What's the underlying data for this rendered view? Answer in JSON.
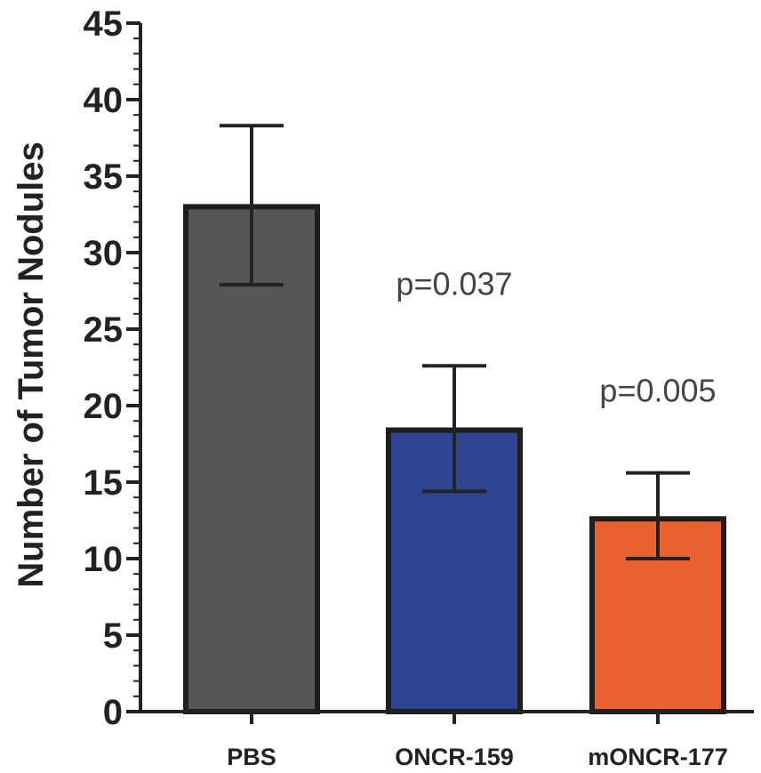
{
  "chart_data": {
    "type": "bar",
    "title": "",
    "xlabel": "",
    "ylabel": "Number of Tumor Nodules",
    "ylim": [
      0,
      45
    ],
    "yticks": [
      0,
      5,
      10,
      15,
      20,
      25,
      30,
      35,
      40,
      45
    ],
    "grid": false,
    "categories": [
      "PBS",
      "ONCR-159",
      "mONCR-177"
    ],
    "values": [
      33.0,
      18.4,
      12.6
    ],
    "error_low": [
      27.9,
      14.4,
      10.0
    ],
    "error_high": [
      38.3,
      22.6,
      15.6
    ],
    "colors": [
      "#545658",
      "#2f4592",
      "#e9622f"
    ],
    "annotations": [
      {
        "category": "ONCR-159",
        "text": "p=0.037"
      },
      {
        "category": "mONCR-177",
        "text": "p=0.005"
      }
    ]
  }
}
